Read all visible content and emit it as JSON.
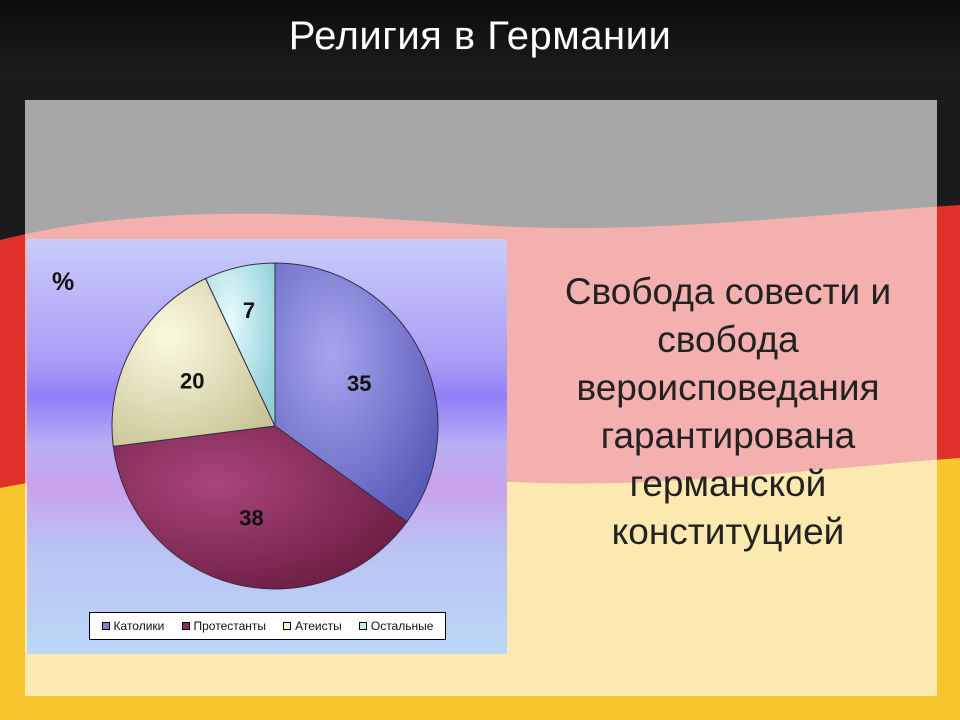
{
  "title": "Религия в Германии",
  "statement": "Свобода совести и свобода вероисповедания гарантирована германской конституцией",
  "colors": {
    "flag_black": "#1a1a1a",
    "flag_red": "#e0302a",
    "flag_gold": "#f7c62d"
  },
  "chart_data": {
    "type": "pie",
    "title": "",
    "unit_label": "%",
    "legend_position": "bottom",
    "categories": [
      "Католики",
      "Протестанты",
      "Атеисты",
      "Остальные"
    ],
    "values": [
      35,
      38,
      20,
      7
    ],
    "colors": [
      "#8080d8",
      "#8e2c5c",
      "#f4f2c4",
      "#bfeef2"
    ]
  }
}
